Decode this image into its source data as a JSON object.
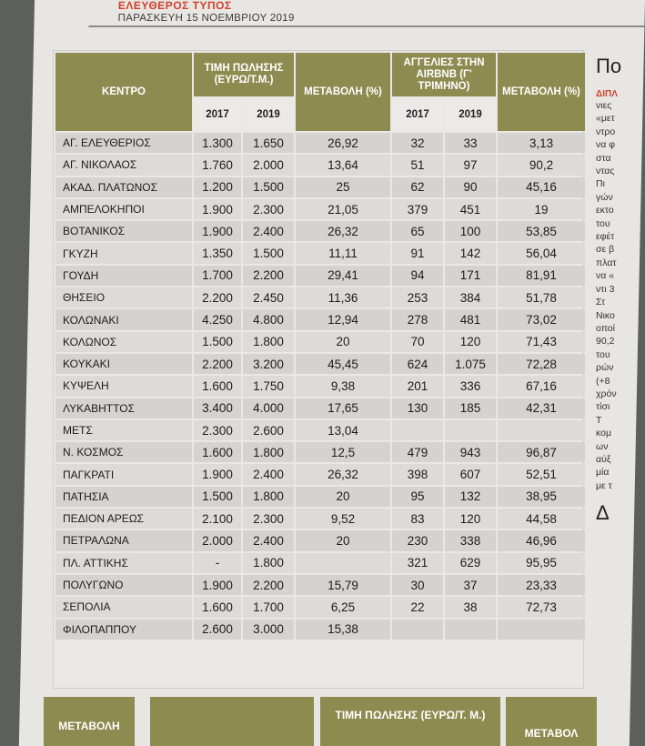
{
  "masthead": {
    "paper_name": "ΕΛΕΥΘΕΡΟΣ ΤΥΠΟΣ",
    "date": "ΠΑΡΑΣΚΕΥΗ 15 ΝΟΕΜΒΡΙΟΥ 2019"
  },
  "table": {
    "headers": {
      "center": "ΚΕΝΤΡΟ",
      "price": "ΤΙΜΗ ΠΩΛΗΣΗΣ (ΕΥΡΩ/Τ.Μ.)",
      "change": "ΜΕΤΑΒΟΛΗ (%)",
      "airbnb": "ΑΓΓΕΛΙΕΣ ΣΤΗΝ AIRBNB (Γ' ΤΡΙΜΗΝΟ)",
      "change2": "ΜΕΤΑΒΟΛΗ (%)",
      "year_2017": "2017",
      "year_2019": "2019"
    },
    "rows": [
      {
        "name": "ΑΓ. ΕΛΕΥΘΕΡΙΟΣ",
        "p17": "1.300",
        "p19": "1.650",
        "ch": "26,92",
        "a17": "32",
        "a19": "33",
        "ach": "3,13"
      },
      {
        "name": "ΑΓ. ΝΙΚΟΛΑΟΣ",
        "p17": "1.760",
        "p19": "2.000",
        "ch": "13,64",
        "a17": "51",
        "a19": "97",
        "ach": "90,2"
      },
      {
        "name": "ΑΚΑΔ. ΠΛΑΤΩΝΟΣ",
        "p17": "1.200",
        "p19": "1.500",
        "ch": "25",
        "a17": "62",
        "a19": "90",
        "ach": "45,16"
      },
      {
        "name": "ΑΜΠΕΛΟΚΗΠΟΙ",
        "p17": "1.900",
        "p19": "2.300",
        "ch": "21,05",
        "a17": "379",
        "a19": "451",
        "ach": "19"
      },
      {
        "name": "ΒΟΤΑΝΙΚΟΣ",
        "p17": "1.900",
        "p19": "2.400",
        "ch": "26,32",
        "a17": "65",
        "a19": "100",
        "ach": "53,85"
      },
      {
        "name": "ΓΚΥΖΗ",
        "p17": "1.350",
        "p19": "1.500",
        "ch": "11,11",
        "a17": "91",
        "a19": "142",
        "ach": "56,04"
      },
      {
        "name": "ΓΟΥΔΗ",
        "p17": "1.700",
        "p19": "2.200",
        "ch": "29,41",
        "a17": "94",
        "a19": "171",
        "ach": "81,91"
      },
      {
        "name": "ΘΗΣΕΙΟ",
        "p17": "2.200",
        "p19": "2.450",
        "ch": "11,36",
        "a17": "253",
        "a19": "384",
        "ach": "51,78"
      },
      {
        "name": "ΚΟΛΩΝΑΚΙ",
        "p17": "4.250",
        "p19": "4.800",
        "ch": "12,94",
        "a17": "278",
        "a19": "481",
        "ach": "73,02"
      },
      {
        "name": "ΚΟΛΩΝΟΣ",
        "p17": "1.500",
        "p19": "1.800",
        "ch": "20",
        "a17": "70",
        "a19": "120",
        "ach": "71,43"
      },
      {
        "name": "ΚΟΥΚΑΚΙ",
        "p17": "2.200",
        "p19": "3.200",
        "ch": "45,45",
        "a17": "624",
        "a19": "1.075",
        "ach": "72,28"
      },
      {
        "name": "ΚΥΨΕΛΗ",
        "p17": "1.600",
        "p19": "1.750",
        "ch": "9,38",
        "a17": "201",
        "a19": "336",
        "ach": "67,16"
      },
      {
        "name": "ΛΥΚΑΒΗΤΤΟΣ",
        "p17": "3.400",
        "p19": "4.000",
        "ch": "17,65",
        "a17": "130",
        "a19": "185",
        "ach": "42,31"
      },
      {
        "name": "ΜΕΤΣ",
        "p17": "2.300",
        "p19": "2.600",
        "ch": "13,04",
        "a17": "",
        "a19": "",
        "ach": ""
      },
      {
        "name": "Ν. ΚΟΣΜΟΣ",
        "p17": "1.600",
        "p19": "1.800",
        "ch": "12,5",
        "a17": "479",
        "a19": "943",
        "ach": "96,87"
      },
      {
        "name": "ΠΑΓΚΡΑΤΙ",
        "p17": "1.900",
        "p19": "2.400",
        "ch": "26,32",
        "a17": "398",
        "a19": "607",
        "ach": "52,51"
      },
      {
        "name": "ΠΑΤΗΣΙΑ",
        "p17": "1.500",
        "p19": "1.800",
        "ch": "20",
        "a17": "95",
        "a19": "132",
        "ach": "38,95"
      },
      {
        "name": "ΠΕΔΙΟΝ ΑΡΕΩΣ",
        "p17": "2.100",
        "p19": "2.300",
        "ch": "9,52",
        "a17": "83",
        "a19": "120",
        "ach": "44,58"
      },
      {
        "name": "ΠΕΤΡΑΛΩΝΑ",
        "p17": "2.000",
        "p19": "2.400",
        "ch": "20",
        "a17": "230",
        "a19": "338",
        "ach": "46,96"
      },
      {
        "name": "ΠΛ. ΑΤΤΙΚΗΣ",
        "p17": "-",
        "p19": "1.800",
        "ch": "",
        "a17": "321",
        "a19": "629",
        "ach": "95,95"
      },
      {
        "name": "ΠΟΛΥΓΩΝΟ",
        "p17": "1.900",
        "p19": "2.200",
        "ch": "15,79",
        "a17": "30",
        "a19": "37",
        "ach": "23,33"
      },
      {
        "name": "ΣΕΠΟΛΙΑ",
        "p17": "1.600",
        "p19": "1.700",
        "ch": "6,25",
        "a17": "22",
        "a19": "38",
        "ach": "72,73"
      },
      {
        "name": "ΦΙΛΟΠΑΠΠΟΥ",
        "p17": "2.600",
        "p19": "3.000",
        "ch": "15,38",
        "a17": "",
        "a19": "",
        "ach": ""
      }
    ]
  },
  "right_column": {
    "title": "Πο",
    "kicker": "ΔΙΠΛ",
    "fragments": [
      "νιες",
      "«μετ",
      "ντρο",
      "να φ",
      "στα",
      "ντας",
      "Πι",
      "γών",
      "εκτο",
      "του",
      "εφέτ",
      "σε β",
      "πλατ",
      "να «",
      "ντι 3",
      "Στ",
      "Νικο",
      "οποί",
      "90,2",
      "του",
      "ρών",
      "(+8",
      "χρόν",
      "τίσι",
      "Τ",
      "κομ",
      "ων",
      "αύξ",
      "μία",
      "με τ"
    ],
    "head2": "Δ"
  },
  "bottom_row": {
    "left_partial": "ΜΕΤΑΒΟΛΗ",
    "center_header": "ΤΙΜΗ ΠΩΛΗΣΗΣ (ΕΥΡΩ/Τ. Μ.)",
    "right_header": "ΜΕΤΑΒΟΛ"
  }
}
